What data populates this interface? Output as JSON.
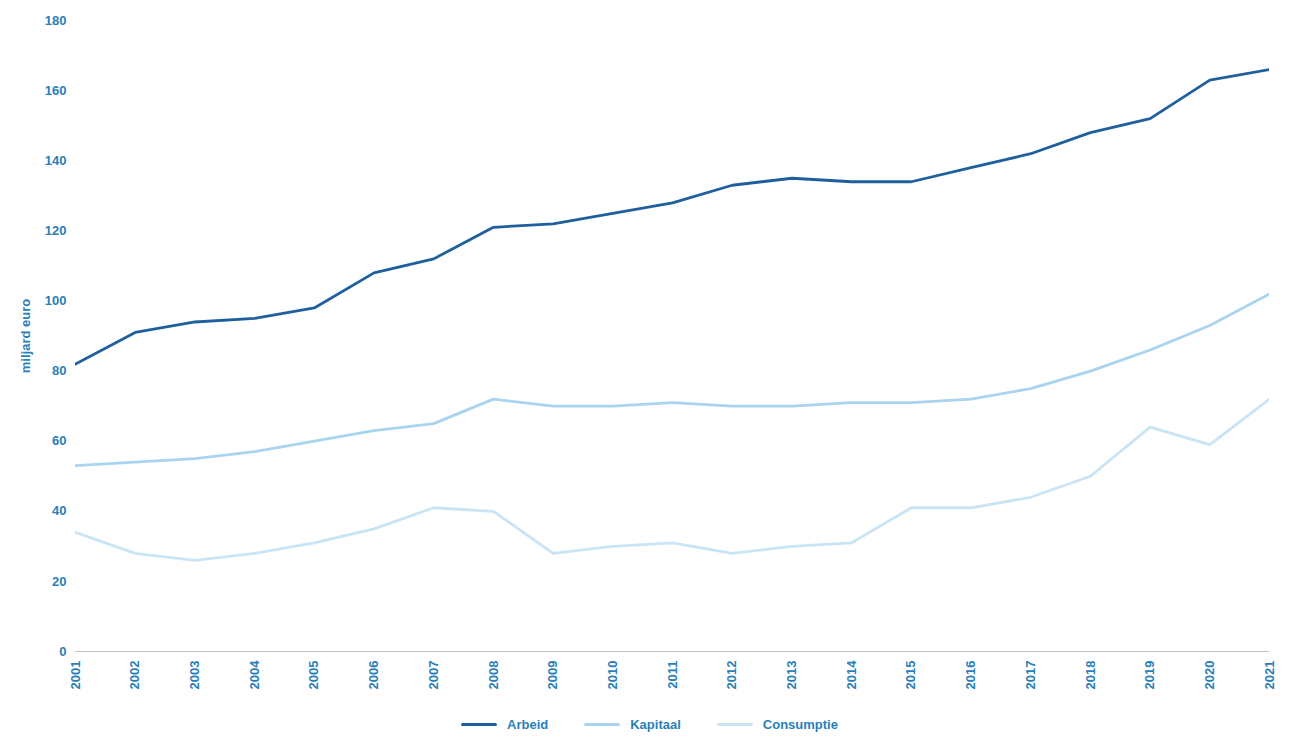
{
  "chart_data": {
    "type": "line",
    "x": [
      2001,
      2002,
      2003,
      2004,
      2005,
      2006,
      2007,
      2008,
      2009,
      2010,
      2011,
      2012,
      2013,
      2014,
      2015,
      2016,
      2017,
      2018,
      2019,
      2020,
      2021
    ],
    "series": [
      {
        "name": "Arbeid",
        "color": "#1f5f9e",
        "values": [
          82,
          91,
          94,
          95,
          98,
          108,
          112,
          121,
          122,
          125,
          128,
          133,
          135,
          134,
          134,
          138,
          142,
          148,
          152,
          163,
          166
        ]
      },
      {
        "name": "Kapitaal",
        "color": "#a8d4f0",
        "values": [
          53,
          54,
          55,
          57,
          60,
          63,
          65,
          72,
          70,
          70,
          71,
          70,
          70,
          71,
          71,
          72,
          75,
          80,
          86,
          93,
          102
        ]
      },
      {
        "name": "Consumptie",
        "color": "#c9e5f5",
        "values": [
          34,
          28,
          26,
          28,
          31,
          35,
          41,
          40,
          28,
          30,
          31,
          28,
          30,
          31,
          41,
          41,
          44,
          50,
          64,
          59,
          72
        ]
      }
    ],
    "ylabel": "miljard euro",
    "xlim": [
      2001,
      2021
    ],
    "xticks": [
      2001,
      2002,
      2003,
      2004,
      2005,
      2006,
      2007,
      2008,
      2009,
      2010,
      2011,
      2012,
      2013,
      2014,
      2015,
      2016,
      2017,
      2018,
      2019,
      2020,
      2021
    ],
    "ylim": [
      0,
      180
    ],
    "yticks": [
      0,
      20,
      40,
      60,
      80,
      100,
      120,
      140,
      160,
      180
    ],
    "grid": false,
    "legend": "bottom"
  }
}
